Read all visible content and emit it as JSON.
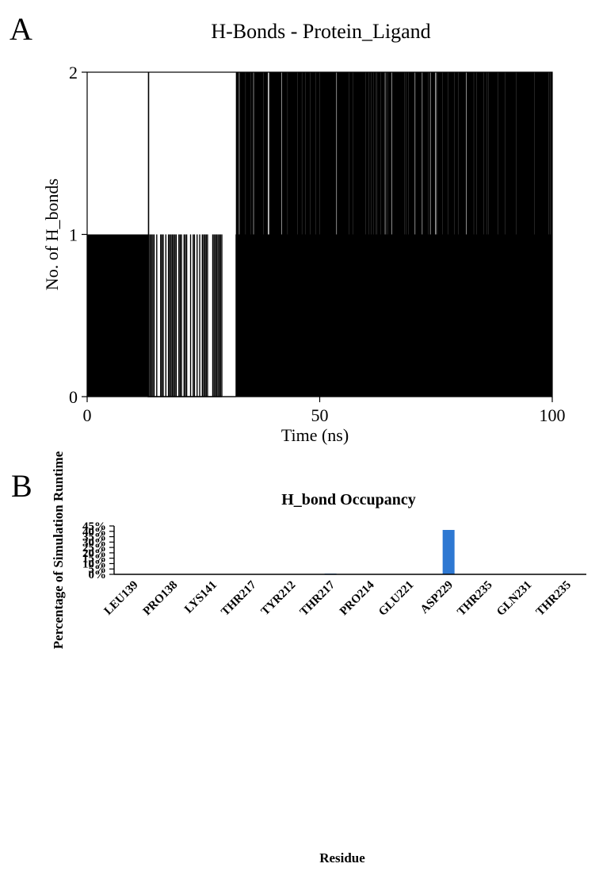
{
  "panels": {
    "a": {
      "letter": "A"
    },
    "b": {
      "letter": "B"
    }
  },
  "chart_data": [
    {
      "type": "line",
      "title": "H-Bonds - Protein_Ligand",
      "xlabel": "Time (ns)",
      "ylabel": "No. of H_bonds",
      "xlim": [
        0,
        100
      ],
      "ylim": [
        0,
        2
      ],
      "xticks": [
        0,
        50,
        100
      ],
      "yticks": [
        0,
        1,
        2
      ],
      "grid": false,
      "legend": "none",
      "color": "#000000",
      "series": [
        {
          "segments": [
            {
              "x_range": [
                0,
                13
              ],
              "values": [
                0,
                1
              ],
              "pattern": "dense fluctuation"
            },
            {
              "x": 13.2,
              "values": [
                0,
                2
              ],
              "pattern": "single spike"
            },
            {
              "x_range": [
                13,
                29
              ],
              "values": [
                0,
                1
              ],
              "pattern": "sparse fluctuation"
            },
            {
              "x_range": [
                29,
                32
              ],
              "values": [
                0
              ],
              "pattern": "constant"
            },
            {
              "x_range": [
                32,
                100
              ],
              "values": [
                0,
                1,
                2
              ],
              "pattern": "dense fluctuation"
            }
          ]
        }
      ]
    },
    {
      "type": "bar",
      "title": "H_bond Occupancy",
      "xlabel": "Residue",
      "ylabel": "Percentage of Simulation Runtime",
      "ylim": [
        0,
        45
      ],
      "yticks": [
        "0%",
        "5%",
        "10%",
        "15%",
        "20%",
        "25%",
        "30%",
        "35%",
        "40%",
        "45%"
      ],
      "categories": [
        "LEU139",
        "PRO138",
        "LYS141",
        "THR217",
        "TYR212",
        "THR217",
        "PRO214",
        "GLU221",
        "ASP229",
        "THR235",
        "GLN231",
        "THR235"
      ],
      "values": [
        0,
        0,
        0,
        0,
        0,
        0.7,
        0,
        0.1,
        41.3,
        0,
        0,
        0
      ],
      "color": "#2e78d2",
      "grid": false,
      "legend": "none"
    }
  ]
}
